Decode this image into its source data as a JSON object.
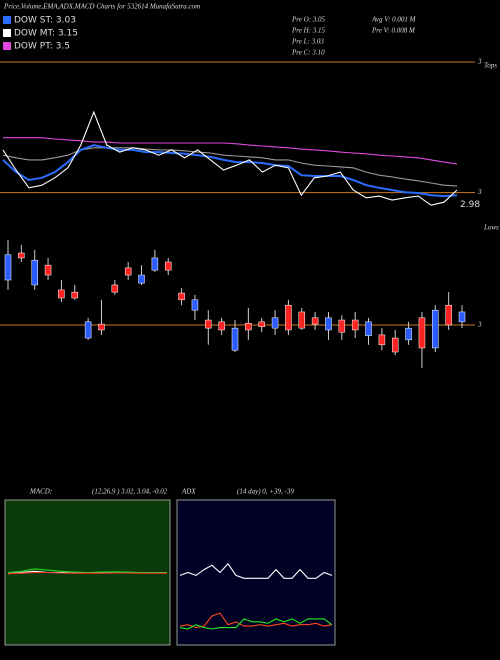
{
  "chart_data": [
    {
      "type": "line",
      "title": "Price,Volume,EMA,ADX,MACD Charts for 532614 MunafaSutra.com",
      "legend": [
        {
          "label": "DOW ST: 3.03",
          "color": "#2a6cff"
        },
        {
          "label": "DOW MT: 3.15",
          "color": "#ffffff"
        },
        {
          "label": "DOW PT: 3.5",
          "color": "#e048e0"
        }
      ],
      "info": [
        "Pre  O: 3.05",
        "Pre  H: 3.15",
        "Pre  L: 3.03",
        "Pre  C: 3.10",
        "Avg V: 0.001 M",
        "Pre  V: 0.008 M"
      ],
      "notes": [
        "Tops"
      ],
      "last_value": 2.98,
      "ylim": [
        2.94,
        3.28
      ],
      "ref_lines": [
        {
          "value": 3.28,
          "label": "3"
        },
        {
          "value": 2.98,
          "label": "3"
        }
      ],
      "ref_color": "#c8781e",
      "series": [
        {
          "color": "#e048e0",
          "values": [
            3.106,
            3.106,
            3.106,
            3.106,
            3.103,
            3.101,
            3.099,
            3.096,
            3.096,
            3.094,
            3.094,
            3.094,
            3.094,
            3.094,
            3.094,
            3.094,
            3.094,
            3.094,
            3.092,
            3.089,
            3.087,
            3.085,
            3.083,
            3.08,
            3.078,
            3.076,
            3.073,
            3.071,
            3.069,
            3.066,
            3.064,
            3.062,
            3.06,
            3.055,
            3.05,
            3.046
          ]
        },
        {
          "color": "#9a9a9a",
          "values": [
            3.066,
            3.06,
            3.055,
            3.055,
            3.06,
            3.066,
            3.078,
            3.083,
            3.083,
            3.083,
            3.083,
            3.08,
            3.078,
            3.078,
            3.076,
            3.073,
            3.071,
            3.066,
            3.064,
            3.062,
            3.06,
            3.055,
            3.055,
            3.048,
            3.043,
            3.041,
            3.039,
            3.037,
            3.027,
            3.02,
            3.016,
            3.011,
            3.007,
            3.002,
            2.997,
            2.995
          ]
        },
        {
          "color": "#2a6cff",
          "values": [
            3.055,
            3.027,
            3.009,
            3.014,
            3.027,
            3.05,
            3.078,
            3.089,
            3.083,
            3.078,
            3.078,
            3.073,
            3.073,
            3.071,
            3.069,
            3.066,
            3.062,
            3.055,
            3.05,
            3.05,
            3.048,
            3.043,
            3.041,
            3.02,
            3.018,
            3.018,
            3.018,
            3.009,
            2.997,
            2.991,
            2.986,
            2.981,
            2.979,
            2.974,
            2.972,
            2.974
          ]
        },
        {
          "color": "#ffffff",
          "values": [
            3.078,
            3.032,
            2.991,
            2.997,
            3.014,
            3.037,
            3.089,
            3.165,
            3.089,
            3.073,
            3.083,
            3.078,
            3.066,
            3.078,
            3.06,
            3.078,
            3.055,
            3.032,
            3.043,
            3.055,
            3.027,
            3.043,
            3.037,
            2.974,
            3.014,
            3.018,
            3.027,
            2.986,
            2.968,
            2.972,
            2.963,
            2.968,
            2.972,
            2.951,
            2.958,
            2.986
          ]
        }
      ]
    },
    {
      "type": "candlestick",
      "notes": [
        "Lows"
      ],
      "ylim": [
        2.9,
        3.2
      ],
      "ref_lines": [
        3
      ],
      "ref_color": "#c8781e",
      "up_color": "#2a5cff",
      "down_color": "#ff2424",
      "open": [
        3.1,
        3.16,
        3.089,
        3.133,
        3.078,
        3.073,
        2.971,
        3.002,
        3.089,
        3.127,
        3.093,
        3.122,
        3.14,
        3.071,
        3.033,
        3.011,
        3.007,
        2.944,
        3.004,
        3.007,
        2.993,
        3.044,
        3.029,
        3.016,
        2.989,
        3.011,
        3.011,
        2.976,
        2.978,
        2.971,
        2.967,
        3.016,
        2.949,
        3.044,
        3.007
      ],
      "high": [
        3.189,
        3.178,
        3.167,
        3.149,
        3.1,
        3.089,
        3.016,
        3.056,
        3.1,
        3.14,
        3.133,
        3.167,
        3.149,
        3.082,
        3.067,
        3.033,
        3.016,
        3.011,
        3.038,
        3.016,
        3.033,
        3.056,
        3.038,
        3.029,
        3.029,
        3.022,
        3.029,
        3.016,
        2.993,
        2.989,
        3.007,
        3.029,
        3.044,
        3.073,
        3.044
      ],
      "low": [
        3.078,
        3.14,
        3.078,
        3.1,
        3.051,
        3.056,
        2.967,
        2.978,
        3.067,
        3.1,
        3.089,
        3.118,
        3.111,
        3.044,
        3.011,
        2.956,
        2.978,
        2.94,
        2.967,
        2.984,
        2.978,
        2.978,
        2.989,
        2.989,
        2.967,
        2.967,
        2.971,
        2.956,
        2.944,
        2.933,
        2.956,
        2.904,
        2.94,
        2.989,
        2.993
      ],
      "close": [
        3.156,
        3.149,
        3.144,
        3.111,
        3.06,
        3.06,
        3.007,
        2.989,
        3.073,
        3.111,
        3.111,
        3.149,
        3.122,
        3.056,
        3.056,
        2.993,
        2.989,
        2.993,
        2.989,
        2.996,
        3.016,
        2.989,
        2.993,
        3.002,
        3.016,
        2.984,
        2.989,
        3.007,
        2.956,
        2.94,
        2.993,
        2.949,
        3.033,
        3.0,
        3.029
      ]
    },
    {
      "type": "line",
      "title": "MACD:",
      "subtitle": "(12,26,9 ) 3.02, 3.04, -0.02",
      "background": "#0b3a0b",
      "ylim": [
        0,
        6
      ],
      "series": [
        {
          "color": "#ffffff",
          "values": [
            2.95,
            3.0,
            3.05,
            3.0,
            3.0,
            2.98,
            3.0,
            3.0,
            3.0,
            3.0,
            3.0,
            3.0,
            3.0
          ]
        },
        {
          "color": "#22dd22",
          "values": [
            3.0,
            3.05,
            3.15,
            3.1,
            3.05,
            3.02,
            3.0,
            3.02,
            3.03,
            3.02,
            3.0,
            3.0,
            3.0
          ]
        },
        {
          "color": "#ff3030",
          "values": [
            2.95,
            2.97,
            3.0,
            3.0,
            2.98,
            2.97,
            2.97,
            2.97,
            2.98,
            2.98,
            2.97,
            2.97,
            2.97
          ]
        }
      ]
    },
    {
      "type": "line",
      "title": "ADX",
      "subtitle": "(14  day) 0, +39, -39",
      "background": "#000025",
      "ylim": [
        0,
        100
      ],
      "series": [
        {
          "color": "#ffffff",
          "values": [
            48,
            50,
            48,
            52,
            55,
            50,
            56,
            48,
            46,
            46,
            46,
            46,
            52,
            46,
            46,
            52,
            46,
            46,
            50,
            48
          ]
        },
        {
          "color": "#ff4a20",
          "values": [
            13,
            14,
            12,
            13,
            20,
            22,
            14,
            16,
            13,
            13,
            14,
            13,
            14,
            15,
            13,
            14,
            14,
            15,
            13,
            14
          ]
        },
        {
          "color": "#22ee22",
          "values": [
            12,
            11,
            14,
            12,
            11,
            12,
            12,
            12,
            18,
            16,
            16,
            15,
            18,
            16,
            18,
            15,
            18,
            18,
            18,
            14
          ]
        }
      ]
    }
  ]
}
